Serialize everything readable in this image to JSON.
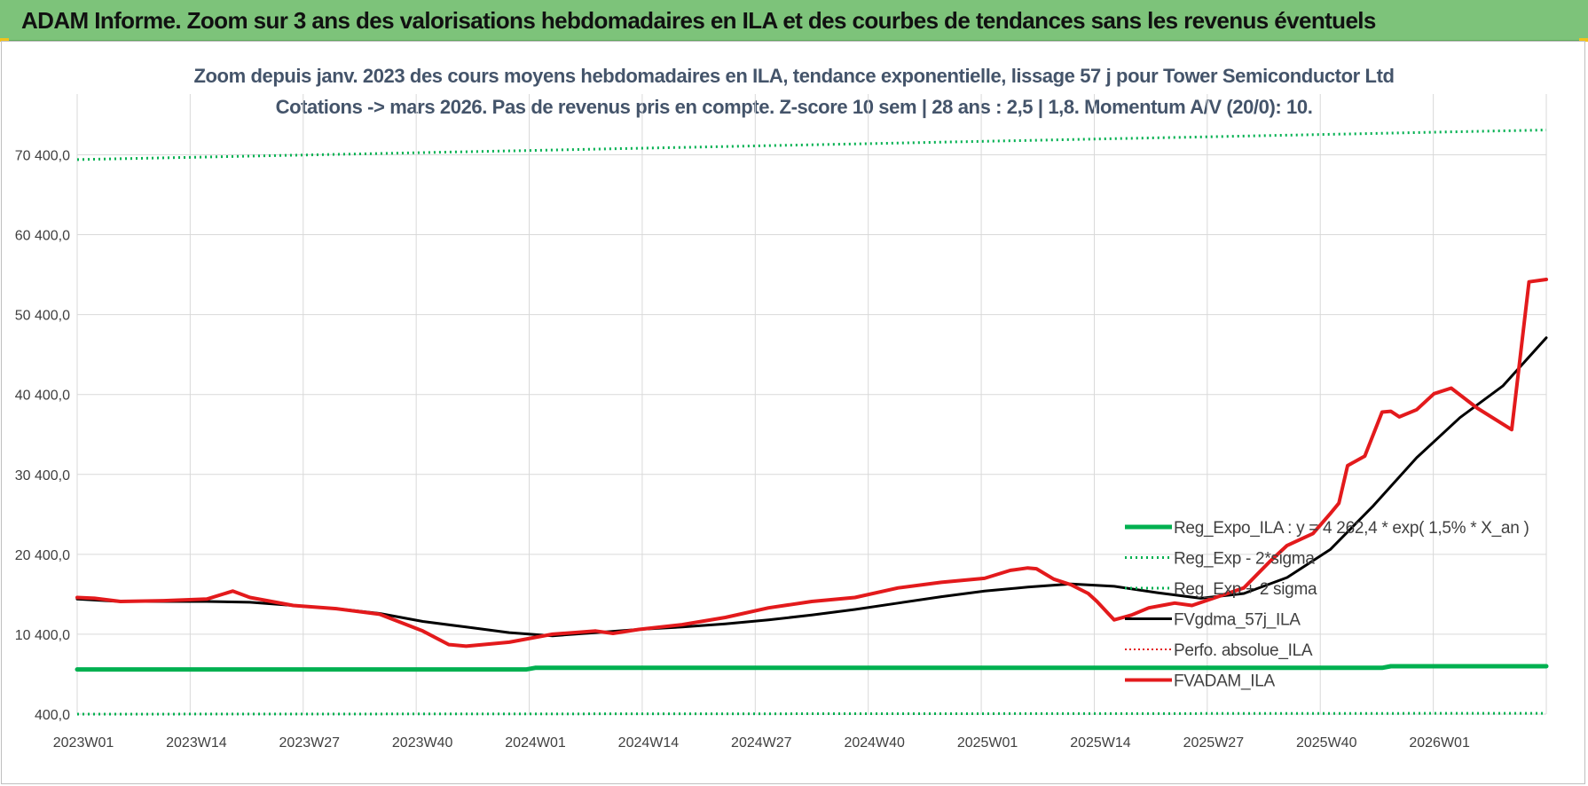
{
  "header": {
    "title": "ADAM Informe. Zoom sur 3 ans des valorisations hebdomadaires en ILA et des courbes de tendances sans les revenus éventuels"
  },
  "colors": {
    "banner": "#7dc37a",
    "reg_expo": "#00b050",
    "fvgdma": "#000000",
    "perfo": "#e31a1c",
    "fvadam": "#e31a1c",
    "grid": "#d9d9d9"
  },
  "chart_data": {
    "type": "line",
    "title_line1": "Zoom depuis janv. 2023 des cours moyens hebdomadaires en ILA,  tendance exponentielle, lissage 57 j pour Tower Semiconductor Ltd",
    "title_line2": "Cotations -> mars 2026. Pas de revenus pris en compte. Z-score 10 sem | 28 ans : 2,5 | 1,8. Momentum A/V (20/0): 10.",
    "xlabel": "",
    "ylabel": "",
    "x_tick_labels": [
      "2023W01",
      "2023W14",
      "2023W27",
      "2023W40",
      "2024W01",
      "2024W14",
      "2024W27",
      "2024W40",
      "2025W01",
      "2025W14",
      "2025W27",
      "2025W40",
      "2026W01"
    ],
    "y_tick_labels": [
      "400,0",
      "10 400,0",
      "20 400,0",
      "30 400,0",
      "40 400,0",
      "50 400,0",
      "60 400,0",
      "70 400,0"
    ],
    "y_ticks": [
      400,
      10400,
      20400,
      30400,
      40400,
      50400,
      60400,
      70400
    ],
    "ylim": [
      400,
      78000
    ],
    "x_range": [
      0,
      170
    ],
    "grid": true,
    "legend_position": "bottom-right",
    "series": [
      {
        "name": "Reg_Expo_ILA : y = 4 262,4 * exp( 1,5% *  X_an )",
        "style": "solid-thick",
        "x": [
          0,
          52,
          53,
          151,
          152,
          170
        ],
        "values": [
          6000,
          6000,
          6200,
          6200,
          6400,
          6400
        ]
      },
      {
        "name": "Reg_Exp - 2*sigma",
        "style": "dotted",
        "x": [
          0,
          170
        ],
        "values": [
          400,
          500
        ]
      },
      {
        "name": "Reg_Exp + 2 sigma",
        "style": "dotted",
        "x": [
          0,
          170
        ],
        "values": [
          69800,
          73500
        ]
      },
      {
        "name": "FVgdma_57j_ILA",
        "style": "solid",
        "x": [
          0,
          5,
          10,
          15,
          20,
          25,
          30,
          35,
          40,
          45,
          50,
          55,
          60,
          65,
          70,
          75,
          80,
          85,
          90,
          95,
          100,
          105,
          110,
          115,
          120,
          125,
          130,
          135,
          140,
          145,
          150,
          155,
          160,
          165,
          170
        ],
        "values": [
          14800,
          14500,
          14500,
          14500,
          14400,
          14000,
          13600,
          13000,
          12000,
          11300,
          10600,
          10200,
          10600,
          11000,
          11300,
          11700,
          12200,
          12800,
          13500,
          14300,
          15100,
          15800,
          16300,
          16700,
          16400,
          15600,
          14900,
          15500,
          17500,
          21000,
          26500,
          32500,
          37500,
          41500,
          47500
        ]
      },
      {
        "name": "Perfo. absolue_ILA",
        "style": "dotted-red",
        "x": [],
        "values": []
      },
      {
        "name": "FVADAM_ILA",
        "style": "solid-thick-red",
        "x": [
          0,
          2,
          5,
          10,
          15,
          18,
          20,
          25,
          30,
          35,
          40,
          43,
          45,
          50,
          55,
          60,
          62,
          65,
          70,
          75,
          80,
          85,
          90,
          95,
          100,
          105,
          108,
          110,
          111,
          113,
          115,
          117,
          118,
          120,
          122,
          124,
          126,
          127,
          129,
          132,
          135,
          138,
          140,
          143,
          145,
          146,
          147,
          149,
          151,
          152,
          153,
          155,
          157,
          159,
          162,
          166,
          168,
          170
        ],
        "values": [
          15000,
          14900,
          14500,
          14600,
          14800,
          15800,
          15000,
          14000,
          13600,
          12900,
          10800,
          9100,
          8900,
          9400,
          10400,
          10800,
          10500,
          11000,
          11600,
          12500,
          13700,
          14500,
          15000,
          16200,
          16900,
          17400,
          18400,
          18700,
          18600,
          17300,
          16600,
          15500,
          14500,
          12200,
          12800,
          13700,
          14100,
          14300,
          14000,
          15100,
          16200,
          19500,
          21500,
          23000,
          25500,
          26800,
          31500,
          32700,
          38200,
          38300,
          37600,
          38500,
          40500,
          41200,
          38700,
          36000,
          54500,
          54800
        ]
      }
    ]
  }
}
